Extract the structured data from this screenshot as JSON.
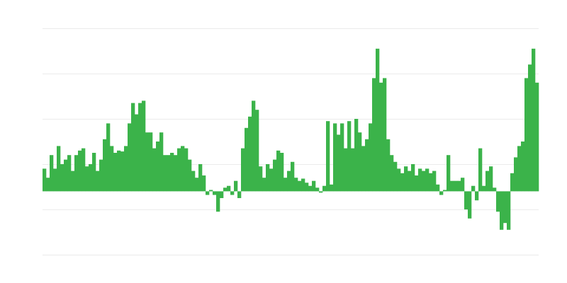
{
  "chart_data": {
    "type": "bar",
    "color": "#3bb34a",
    "grid": true,
    "ylim": [
      -1.4,
      3.6
    ],
    "yticks": [
      -1.4,
      -0.4,
      0.6,
      1.6,
      2.6,
      3.6
    ],
    "values": [
      0.5,
      0.3,
      0.8,
      0.5,
      1.0,
      0.6,
      0.7,
      0.8,
      0.45,
      0.8,
      0.9,
      0.95,
      0.55,
      0.6,
      0.85,
      0.45,
      0.7,
      1.15,
      1.5,
      1.0,
      0.85,
      0.9,
      0.88,
      1.0,
      1.5,
      1.95,
      1.7,
      1.95,
      2.0,
      1.3,
      1.3,
      0.95,
      1.1,
      1.3,
      0.8,
      0.8,
      0.85,
      0.8,
      0.95,
      1.0,
      0.95,
      0.7,
      0.45,
      0.3,
      0.6,
      0.35,
      -0.08,
      0.03,
      -0.08,
      -0.45,
      -0.15,
      0.08,
      0.12,
      -0.08,
      0.23,
      -0.15,
      0.95,
      1.4,
      1.65,
      2.0,
      1.8,
      0.55,
      0.3,
      0.6,
      0.5,
      0.7,
      0.9,
      0.85,
      0.3,
      0.45,
      0.65,
      0.3,
      0.23,
      0.28,
      0.19,
      0.12,
      0.23,
      0.08,
      -0.03,
      0.12,
      1.55,
      0.15,
      1.5,
      1.25,
      1.5,
      0.95,
      1.55,
      0.95,
      1.6,
      1.3,
      1.0,
      1.15,
      1.5,
      2.5,
      3.15,
      2.4,
      2.5,
      1.15,
      0.8,
      0.65,
      0.5,
      0.4,
      0.55,
      0.45,
      0.6,
      0.35,
      0.5,
      0.45,
      0.5,
      0.4,
      0.45,
      0.15,
      -0.08,
      0.03,
      0.8,
      0.23,
      0.23,
      0.23,
      0.3,
      -0.4,
      -0.6,
      0.12,
      -0.2,
      0.95,
      0.12,
      0.45,
      0.55,
      0.08,
      -0.45,
      -0.85,
      -0.7,
      -0.85,
      0.4,
      0.75,
      1.0,
      1.1,
      2.5,
      2.8,
      3.15,
      2.4
    ]
  }
}
